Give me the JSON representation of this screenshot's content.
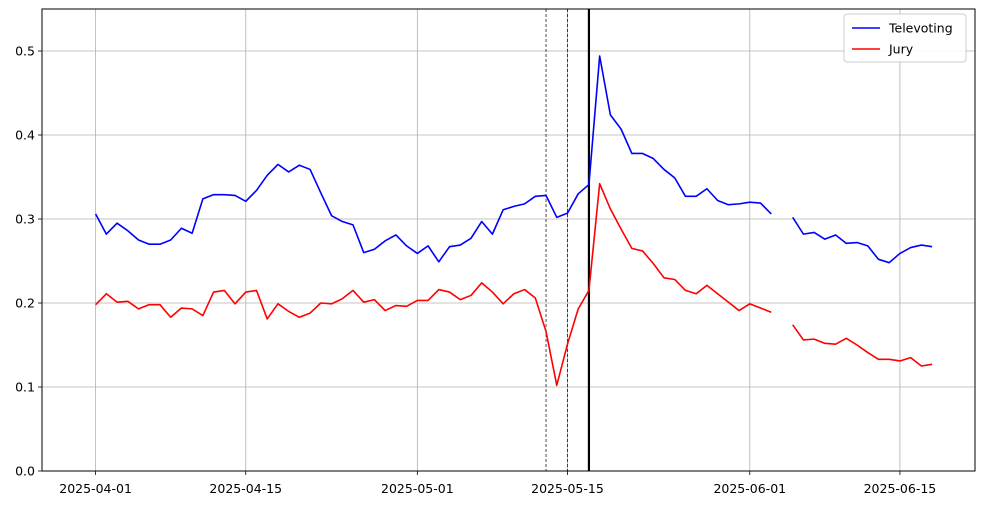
{
  "chart_data": {
    "type": "line",
    "title": "",
    "xlabel": "",
    "ylabel": "",
    "x_axis_type": "date",
    "xlim": [
      "2025-03-27",
      "2025-06-22"
    ],
    "ylim": [
      0,
      0.55
    ],
    "grid": true,
    "legend_placement": "top-right",
    "x_ticks": [
      "2025-04-01",
      "2025-04-15",
      "2025-05-01",
      "2025-05-15",
      "2025-06-01",
      "2025-06-15"
    ],
    "y_ticks": [
      "0.0",
      "0.1",
      "0.2",
      "0.3",
      "0.4",
      "0.5"
    ],
    "vertical_lines": [
      {
        "date": "2025-05-13",
        "style": "dashed"
      },
      {
        "date": "2025-05-15",
        "style": "dashed"
      },
      {
        "date": "2025-05-17",
        "style": "solid-bold"
      }
    ],
    "series": [
      {
        "name": "Televoting",
        "color": "#0000ff",
        "points": [
          [
            "2025-04-01",
            0.306
          ],
          [
            "2025-04-02",
            0.282
          ],
          [
            "2025-04-03",
            0.295
          ],
          [
            "2025-04-04",
            0.286
          ],
          [
            "2025-04-05",
            0.275
          ],
          [
            "2025-04-06",
            0.27
          ],
          [
            "2025-04-07",
            0.27
          ],
          [
            "2025-04-08",
            0.275
          ],
          [
            "2025-04-09",
            0.289
          ],
          [
            "2025-04-10",
            0.283
          ],
          [
            "2025-04-11",
            0.324
          ],
          [
            "2025-04-12",
            0.329
          ],
          [
            "2025-04-13",
            0.329
          ],
          [
            "2025-04-14",
            0.328
          ],
          [
            "2025-04-15",
            0.321
          ],
          [
            "2025-04-16",
            0.334
          ],
          [
            "2025-04-17",
            0.352
          ],
          [
            "2025-04-18",
            0.365
          ],
          [
            "2025-04-19",
            0.356
          ],
          [
            "2025-04-20",
            0.364
          ],
          [
            "2025-04-21",
            0.359
          ],
          [
            "2025-04-22",
            0.331
          ],
          [
            "2025-04-23",
            0.304
          ],
          [
            "2025-04-24",
            0.297
          ],
          [
            "2025-04-25",
            0.293
          ],
          [
            "2025-04-26",
            0.26
          ],
          [
            "2025-04-27",
            0.264
          ],
          [
            "2025-04-28",
            0.274
          ],
          [
            "2025-04-29",
            0.281
          ],
          [
            "2025-04-30",
            0.268
          ],
          [
            "2025-05-01",
            0.259
          ],
          [
            "2025-05-02",
            0.268
          ],
          [
            "2025-05-03",
            0.249
          ],
          [
            "2025-05-04",
            0.267
          ],
          [
            "2025-05-05",
            0.269
          ],
          [
            "2025-05-06",
            0.277
          ],
          [
            "2025-05-07",
            0.297
          ],
          [
            "2025-05-08",
            0.282
          ],
          [
            "2025-05-09",
            0.311
          ],
          [
            "2025-05-10",
            0.315
          ],
          [
            "2025-05-11",
            0.318
          ],
          [
            "2025-05-12",
            0.327
          ],
          [
            "2025-05-13",
            0.328
          ],
          [
            "2025-05-14",
            0.302
          ],
          [
            "2025-05-15",
            0.307
          ],
          [
            "2025-05-16",
            0.33
          ],
          [
            "2025-05-17",
            0.341
          ],
          [
            "2025-05-18",
            0.494
          ],
          [
            "2025-05-19",
            0.424
          ],
          [
            "2025-05-20",
            0.407
          ],
          [
            "2025-05-21",
            0.378
          ],
          [
            "2025-05-22",
            0.378
          ],
          [
            "2025-05-23",
            0.372
          ],
          [
            "2025-05-24",
            0.359
          ],
          [
            "2025-05-25",
            0.349
          ],
          [
            "2025-05-26",
            0.327
          ],
          [
            "2025-05-27",
            0.327
          ],
          [
            "2025-05-28",
            0.336
          ],
          [
            "2025-05-29",
            0.322
          ],
          [
            "2025-05-30",
            0.317
          ],
          [
            "2025-05-31",
            0.318
          ],
          [
            "2025-06-01",
            0.32
          ],
          [
            "2025-06-02",
            0.319
          ],
          [
            "2025-06-03",
            0.306
          ],
          [
            "2025-06-04",
            null
          ],
          [
            "2025-06-05",
            0.302
          ],
          [
            "2025-06-06",
            0.282
          ],
          [
            "2025-06-07",
            0.284
          ],
          [
            "2025-06-08",
            0.276
          ],
          [
            "2025-06-09",
            0.281
          ],
          [
            "2025-06-10",
            0.271
          ],
          [
            "2025-06-11",
            0.272
          ],
          [
            "2025-06-12",
            0.268
          ],
          [
            "2025-06-13",
            0.252
          ],
          [
            "2025-06-14",
            0.248
          ],
          [
            "2025-06-15",
            0.259
          ],
          [
            "2025-06-16",
            0.266
          ],
          [
            "2025-06-17",
            0.269
          ],
          [
            "2025-06-18",
            0.267
          ]
        ]
      },
      {
        "name": "Jury",
        "color": "#ff0000",
        "points": [
          [
            "2025-04-01",
            0.198
          ],
          [
            "2025-04-02",
            0.211
          ],
          [
            "2025-04-03",
            0.201
          ],
          [
            "2025-04-04",
            0.202
          ],
          [
            "2025-04-05",
            0.193
          ],
          [
            "2025-04-06",
            0.198
          ],
          [
            "2025-04-07",
            0.198
          ],
          [
            "2025-04-08",
            0.183
          ],
          [
            "2025-04-09",
            0.194
          ],
          [
            "2025-04-10",
            0.193
          ],
          [
            "2025-04-11",
            0.185
          ],
          [
            "2025-04-12",
            0.213
          ],
          [
            "2025-04-13",
            0.215
          ],
          [
            "2025-04-14",
            0.199
          ],
          [
            "2025-04-15",
            0.213
          ],
          [
            "2025-04-16",
            0.215
          ],
          [
            "2025-04-17",
            0.181
          ],
          [
            "2025-04-18",
            0.199
          ],
          [
            "2025-04-19",
            0.19
          ],
          [
            "2025-04-20",
            0.183
          ],
          [
            "2025-04-21",
            0.188
          ],
          [
            "2025-04-22",
            0.2
          ],
          [
            "2025-04-23",
            0.199
          ],
          [
            "2025-04-24",
            0.205
          ],
          [
            "2025-04-25",
            0.215
          ],
          [
            "2025-04-26",
            0.201
          ],
          [
            "2025-04-27",
            0.204
          ],
          [
            "2025-04-28",
            0.191
          ],
          [
            "2025-04-29",
            0.197
          ],
          [
            "2025-04-30",
            0.196
          ],
          [
            "2025-05-01",
            0.203
          ],
          [
            "2025-05-02",
            0.203
          ],
          [
            "2025-05-03",
            0.216
          ],
          [
            "2025-05-04",
            0.213
          ],
          [
            "2025-05-05",
            0.204
          ],
          [
            "2025-05-06",
            0.209
          ],
          [
            "2025-05-07",
            0.224
          ],
          [
            "2025-05-08",
            0.213
          ],
          [
            "2025-05-09",
            0.199
          ],
          [
            "2025-05-10",
            0.211
          ],
          [
            "2025-05-11",
            0.216
          ],
          [
            "2025-05-12",
            0.206
          ],
          [
            "2025-05-13",
            0.166
          ],
          [
            "2025-05-14",
            0.102
          ],
          [
            "2025-05-15",
            0.151
          ],
          [
            "2025-05-16",
            0.193
          ],
          [
            "2025-05-17",
            0.215
          ],
          [
            "2025-05-18",
            0.342
          ],
          [
            "2025-05-19",
            0.312
          ],
          [
            "2025-05-20",
            0.288
          ],
          [
            "2025-05-21",
            0.265
          ],
          [
            "2025-05-22",
            0.262
          ],
          [
            "2025-05-23",
            0.247
          ],
          [
            "2025-05-24",
            0.23
          ],
          [
            "2025-05-25",
            0.228
          ],
          [
            "2025-05-26",
            0.215
          ],
          [
            "2025-05-27",
            0.211
          ],
          [
            "2025-05-28",
            0.221
          ],
          [
            "2025-05-29",
            0.211
          ],
          [
            "2025-05-30",
            0.201
          ],
          [
            "2025-05-31",
            0.191
          ],
          [
            "2025-06-01",
            0.199
          ],
          [
            "2025-06-02",
            0.194
          ],
          [
            "2025-06-03",
            0.189
          ],
          [
            "2025-06-04",
            null
          ],
          [
            "2025-06-05",
            0.174
          ],
          [
            "2025-06-06",
            0.156
          ],
          [
            "2025-06-07",
            0.157
          ],
          [
            "2025-06-08",
            0.152
          ],
          [
            "2025-06-09",
            0.151
          ],
          [
            "2025-06-10",
            0.158
          ],
          [
            "2025-06-11",
            0.15
          ],
          [
            "2025-06-12",
            0.141
          ],
          [
            "2025-06-13",
            0.133
          ],
          [
            "2025-06-14",
            0.133
          ],
          [
            "2025-06-15",
            0.131
          ],
          [
            "2025-06-16",
            0.135
          ],
          [
            "2025-06-17",
            0.125
          ],
          [
            "2025-06-18",
            0.127
          ]
        ]
      }
    ]
  }
}
